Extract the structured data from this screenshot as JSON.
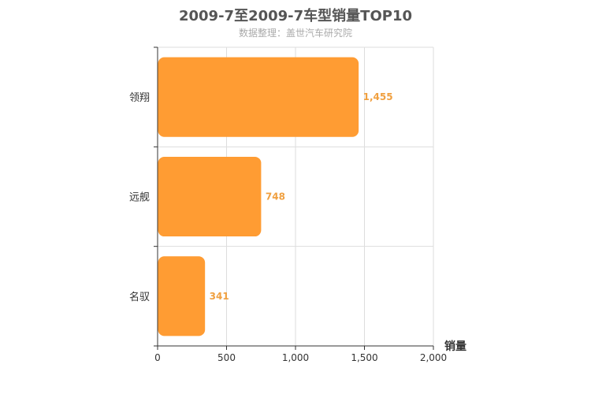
{
  "title": "2009-7至2009-7车型销量TOP10",
  "subtitle": "数据整理：盖世汽车研究院",
  "colors": {
    "bar": "#ff9c33",
    "data_label": "#f0a040",
    "grid": "#dddddd",
    "axis": "#333333"
  },
  "chart_data": {
    "type": "bar",
    "orientation": "horizontal",
    "categories": [
      "领翔",
      "远舰",
      "名驭"
    ],
    "values": [
      1455,
      748,
      341
    ],
    "value_labels": [
      "1,455",
      "748",
      "341"
    ],
    "xlabel": "销量",
    "ylabel": "",
    "xlim": [
      0,
      2000
    ],
    "ticks": [
      0,
      500,
      1000,
      1500,
      2000
    ],
    "tick_labels": [
      "0",
      "500",
      "1,000",
      "1,500",
      "2,000"
    ],
    "grid": true,
    "legend": "none"
  }
}
